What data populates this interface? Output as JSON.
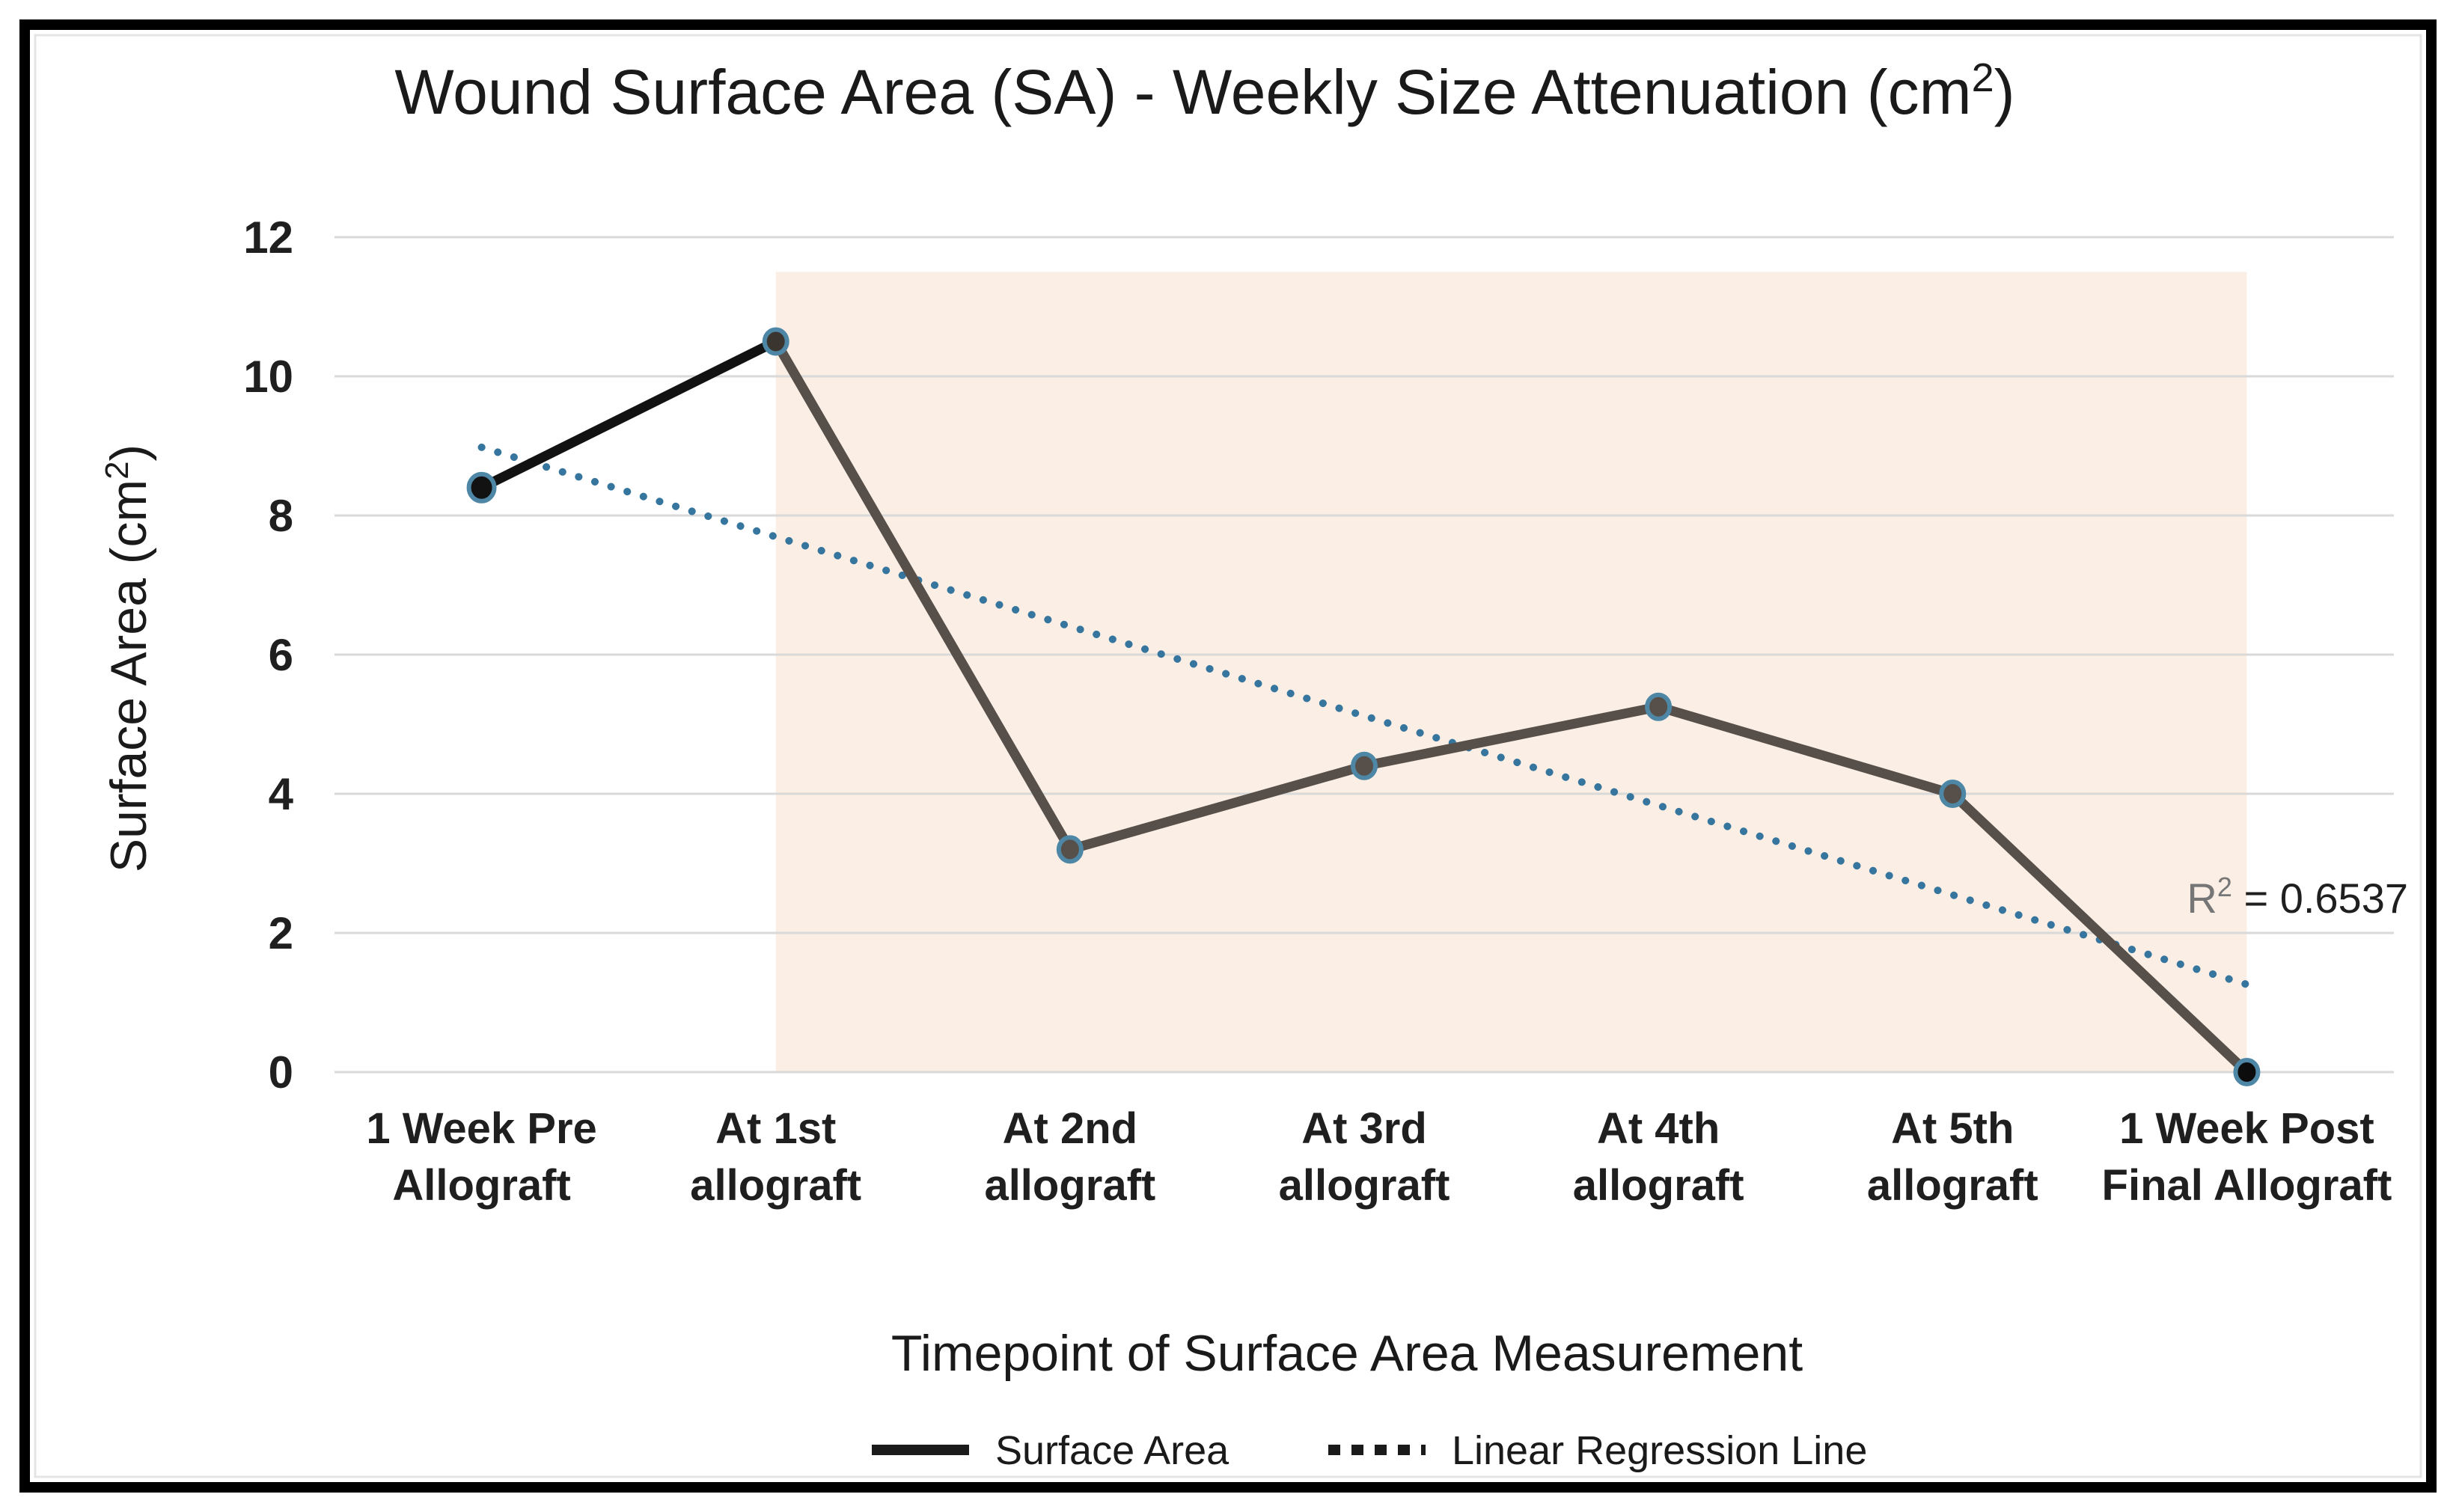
{
  "title": {
    "part1": "Wound Surface Area (SA) - Weekly Size Attenuation (cm",
    "sup": "2",
    "part2": ")"
  },
  "y_axis": {
    "label_part1": "Surface Area (cm",
    "label_sup": "2",
    "label_part2": ")",
    "ticks": [
      0,
      2,
      4,
      6,
      8,
      10,
      12
    ]
  },
  "x_axis": {
    "title": "Timepoint of Surface Area Measurement",
    "category_lines": [
      [
        "1 Week Pre",
        "Allograft"
      ],
      [
        "At 1st",
        "allograft"
      ],
      [
        "At 2nd",
        "allograft"
      ],
      [
        "At 3rd",
        "allograft"
      ],
      [
        "At 4th",
        "allograft"
      ],
      [
        "At 5th",
        "allograft"
      ],
      [
        "1 Week Post",
        "Final Allograft"
      ]
    ]
  },
  "legend": {
    "series_label": "Surface Area",
    "regression_label": "Linear Regression Line"
  },
  "annotation": {
    "r": "R",
    "sup": "2",
    "value": " = 0.6537"
  },
  "chart_data": {
    "type": "line",
    "title": "Wound Surface Area (SA) - Weekly Size Attenuation (cm2)",
    "xlabel": "Timepoint of Surface Area Measurement",
    "ylabel": "Surface Area (cm2)",
    "ylim": [
      0,
      12
    ],
    "grid": true,
    "legend_position": "bottom",
    "categories": [
      "1 Week Pre Allograft",
      "At 1st allograft",
      "At 2nd allograft",
      "At 3rd allograft",
      "At 4th allograft",
      "At 5th allograft",
      "1 Week Post Final Allograft"
    ],
    "series": [
      {
        "name": "Surface Area",
        "values": [
          8.4,
          10.5,
          3.2,
          4.4,
          5.25,
          4.0,
          0
        ]
      }
    ],
    "regression": {
      "name": "Linear Regression Line",
      "start_value": 8.98,
      "end_value": 1.26,
      "r_squared": 0.6537
    },
    "highlight_region": {
      "from_category_index": 1,
      "to_category_index": 6,
      "y_from": 0,
      "y_to": 11.5
    },
    "colors": {
      "series_first_segment": "#121212",
      "series_line": "#57504A",
      "marker_fills": [
        "#121212",
        "#3A352F",
        "#57504A",
        "#57504A",
        "#57504A",
        "#57504A",
        "#0C0C0C"
      ],
      "marker_ring": "#4E86A6",
      "regression": "#36759D",
      "highlight": "#FBEEE5",
      "gridline": "#D9D9D9"
    }
  }
}
